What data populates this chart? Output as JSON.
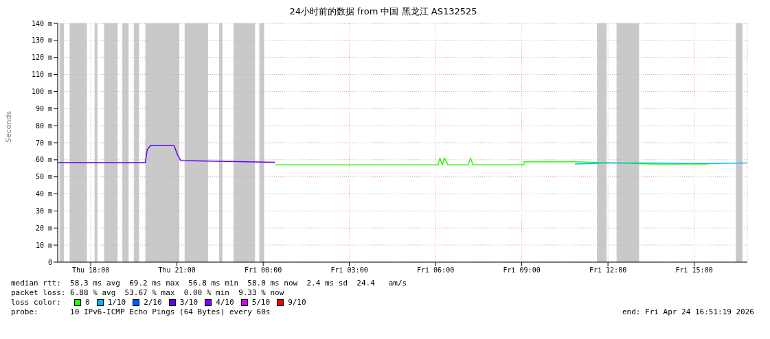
{
  "chart_data": {
    "type": "line",
    "title": "24小时前的数据 from 中国 黑龙江 AS132525",
    "ylabel": "Seconds",
    "legend_title": "loss color:",
    "legend": "bottom",
    "grid": true,
    "marker": "none",
    "line_style": "solid",
    "xlim": [
      "2026-04-23T16:51",
      "2026-04-24T16:51"
    ],
    "xticks": [
      {
        "value": "2026-04-23T18:00",
        "label": "Thu 18:00"
      },
      {
        "value": "2026-04-23T21:00",
        "label": "Thu 21:00"
      },
      {
        "value": "2026-04-24T00:00",
        "label": "Fri 00:00"
      },
      {
        "value": "2026-04-24T03:00",
        "label": "Fri 03:00"
      },
      {
        "value": "2026-04-24T06:00",
        "label": "Fri 06:00"
      },
      {
        "value": "2026-04-24T09:00",
        "label": "Fri 09:00"
      },
      {
        "value": "2026-04-24T12:00",
        "label": "Fri 12:00"
      },
      {
        "value": "2026-04-24T15:00",
        "label": "Fri 15:00"
      }
    ],
    "ylim": [
      0,
      140
    ],
    "yticks": [
      0,
      {
        "value": 10,
        "label": "10 m"
      },
      {
        "value": 20,
        "label": "20 m"
      },
      {
        "value": 30,
        "label": "30 m"
      },
      {
        "value": 40,
        "label": "40 m"
      },
      {
        "value": 50,
        "label": "50 m"
      },
      {
        "value": 60,
        "label": "60 m"
      },
      {
        "value": 70,
        "label": "70 m"
      },
      {
        "value": 80,
        "label": "80 m"
      },
      {
        "value": 90,
        "label": "90 m"
      },
      {
        "value": 100,
        "label": "100 m"
      },
      {
        "value": 110,
        "label": "110 m"
      },
      {
        "value": 120,
        "label": "120 m"
      },
      {
        "value": 130,
        "label": "130 m"
      },
      {
        "value": 140,
        "label": "140 m"
      }
    ],
    "series": [
      {
        "name": "0",
        "color": "#26ff00",
        "x": [
          "2026-04-24T00:25",
          "2026-04-24T06:05",
          "2026-04-24T06:09",
          "2026-04-24T06:14",
          "2026-04-24T06:19",
          "2026-04-24T06:26",
          "2026-04-24T07:08",
          "2026-04-24T07:13",
          "2026-04-24T07:18",
          "2026-04-24T09:04",
          "2026-04-24T09:05",
          "2026-04-24T10:51",
          "2026-04-24T13:30",
          "2026-04-24T14:30",
          "2026-04-24T15:30"
        ],
        "values": [
          57,
          57,
          61,
          57,
          61,
          57,
          57,
          61,
          57,
          57,
          58.8,
          58.8,
          57.5,
          57.5,
          57.5
        ]
      },
      {
        "name": "1/10",
        "color": "#00b8ff",
        "x": [
          "2026-04-24T10:51",
          "2026-04-24T12:00",
          "2026-04-24T13:30",
          "2026-04-24T15:30",
          "2026-04-24T16:51"
        ],
        "values": [
          57.5,
          58.1,
          58.1,
          57.8,
          58.1
        ]
      },
      {
        "name": "2/10",
        "color": "#0059ff"
      },
      {
        "name": "3/10",
        "color": "#5e00ff",
        "x": [
          "2026-04-23T16:51",
          "2026-04-23T19:54",
          "2026-04-23T19:58",
          "2026-04-23T20:05",
          "2026-04-23T20:54",
          "2026-04-23T21:01",
          "2026-04-23T21:08",
          "2026-04-24T00:25"
        ],
        "values": [
          58.3,
          58.3,
          66,
          68.4,
          68.4,
          63,
          59.5,
          58.5
        ]
      },
      {
        "name": "4/10",
        "color": "#7e00ff"
      },
      {
        "name": "5/10",
        "color": "#dd00ff"
      },
      {
        "name": "9/10",
        "color": "#ff0000"
      }
    ],
    "bands": [
      {
        "axis": "x",
        "from": "2026-04-23T16:55",
        "to": "2026-04-23T17:04",
        "color": "#bbbbbb"
      },
      {
        "axis": "x",
        "from": "2026-04-23T17:16",
        "to": "2026-04-23T17:52",
        "color": "#bbbbbb"
      },
      {
        "axis": "x",
        "from": "2026-04-23T18:08",
        "to": "2026-04-23T18:14",
        "color": "#bbbbbb"
      },
      {
        "axis": "x",
        "from": "2026-04-23T18:28",
        "to": "2026-04-23T18:56",
        "color": "#bbbbbb"
      },
      {
        "axis": "x",
        "from": "2026-04-23T19:06",
        "to": "2026-04-23T19:19",
        "color": "#bbbbbb"
      },
      {
        "axis": "x",
        "from": "2026-04-23T19:30",
        "to": "2026-04-23T19:41",
        "color": "#bbbbbb"
      },
      {
        "axis": "x",
        "from": "2026-04-23T19:54",
        "to": "2026-04-23T21:05",
        "color": "#bbbbbb"
      },
      {
        "axis": "x",
        "from": "2026-04-23T21:16",
        "to": "2026-04-23T22:05",
        "color": "#bbbbbb"
      },
      {
        "axis": "x",
        "from": "2026-04-23T22:28",
        "to": "2026-04-23T22:35",
        "color": "#bbbbbb"
      },
      {
        "axis": "x",
        "from": "2026-04-23T22:58",
        "to": "2026-04-23T23:43",
        "color": "#bbbbbb"
      },
      {
        "axis": "x",
        "from": "2026-04-23T23:52",
        "to": "2026-04-24T00:02",
        "color": "#bbbbbb"
      },
      {
        "axis": "x",
        "from": "2026-04-24T11:37",
        "to": "2026-04-24T11:57",
        "color": "#bbbbbb"
      },
      {
        "axis": "x",
        "from": "2026-04-24T12:18",
        "to": "2026-04-24T13:05",
        "color": "#bbbbbb"
      },
      {
        "axis": "x",
        "from": "2026-04-24T16:27",
        "to": "2026-04-24T16:41",
        "color": "#bbbbbb"
      }
    ],
    "annotations": [
      "median rtt:  58.3 ms avg  69.2 ms max  56.8 ms min  58.0 ms now  2.4 ms sd  24.4   am/s",
      "packet loss: 6.88 % avg  53.67 % max  0.00 % min  9.33 % now",
      "probe:       10 IPv6-ICMP Echo Pings (64 Bytes) every 60s",
      "end: Fri Apr 24 16:51:19 2026"
    ]
  }
}
